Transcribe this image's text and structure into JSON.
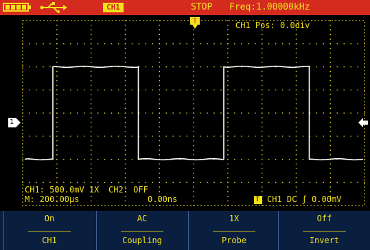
{
  "status": {
    "channel_badge": "CH1",
    "run_state": "STOP",
    "frequency": "Freq:1.00000kHz"
  },
  "overlay": {
    "ch1_position": "CH1 Pos: 0.0div",
    "ch1_info": "CH1: 500.0mV 1X",
    "ch2_info": "CH2: OFF",
    "timebase": "M: 200.00µs",
    "h_position": "0.00ns",
    "trigger_info": "CH1 DC ʃ 0.00mV",
    "marker_trigger": "T",
    "marker_ground": "1"
  },
  "softkeys": [
    {
      "value": "On",
      "label": "CH1"
    },
    {
      "value": "AC",
      "label": "Coupling"
    },
    {
      "value": "1X",
      "label": "Probe"
    },
    {
      "value": "Off",
      "label": "Invert"
    }
  ],
  "colors": {
    "trace": "#ffffff",
    "grid": "#f2e21c",
    "status_bar": "#d42b1e",
    "softkey_bg": "#0a1e3f"
  },
  "icons": [
    "battery-icon",
    "usb-icon"
  ],
  "waveform": {
    "type": "square",
    "frequency_khz": 1.0,
    "high_level_div": 2.0,
    "low_level_div": -2.0,
    "time_per_div_us": 200,
    "divisions": 10
  }
}
